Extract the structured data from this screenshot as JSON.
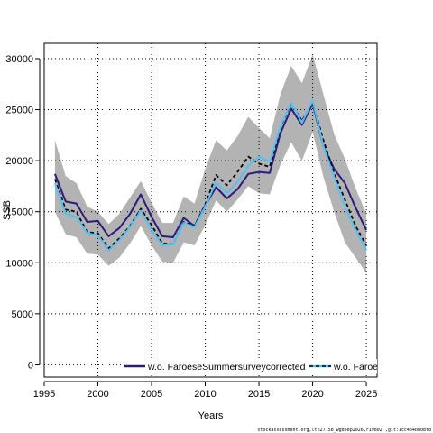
{
  "chart_data": {
    "type": "line",
    "xlabel": "Years",
    "ylabel": "SSB",
    "xlim": [
      1995,
      2026
    ],
    "ylim": [
      -1200,
      31500
    ],
    "x_ticks": [
      1995,
      2000,
      2005,
      2010,
      2015,
      2020,
      2025
    ],
    "y_ticks": [
      0,
      5000,
      10000,
      15000,
      20000,
      25000,
      30000
    ],
    "grid": "dotted",
    "years": [
      1996,
      1997,
      1998,
      1999,
      2000,
      2001,
      2002,
      2003,
      2004,
      2005,
      2006,
      2007,
      2008,
      2009,
      2010,
      2011,
      2012,
      2013,
      2014,
      2015,
      2016,
      2017,
      2018,
      2019,
      2020,
      2021,
      2022,
      2023,
      2024,
      2025
    ],
    "band": {
      "lower": [
        15000,
        12800,
        12500,
        10900,
        10800,
        9700,
        10500,
        11900,
        13600,
        11700,
        10100,
        10000,
        12000,
        11700,
        13700,
        16100,
        15000,
        16200,
        17500,
        16800,
        16700,
        19600,
        21800,
        20000,
        22800,
        18400,
        15000,
        12000,
        10500,
        9000
      ],
      "upper": [
        22000,
        18500,
        17800,
        15500,
        15000,
        13800,
        14800,
        16400,
        18000,
        15900,
        13900,
        13900,
        16500,
        15800,
        19200,
        22000,
        21000,
        22400,
        24300,
        23200,
        22200,
        26500,
        29300,
        27600,
        30400,
        26500,
        22600,
        20200,
        17300,
        14800
      ]
    },
    "series": [
      {
        "name": "w.o. FaroeseSummersurveycorrected",
        "color": "#2e1a7a",
        "style": "solid",
        "values": [
          18700,
          16000,
          15800,
          14000,
          14100,
          12600,
          13400,
          14800,
          16700,
          14500,
          12600,
          12500,
          14400,
          13600,
          15600,
          17400,
          16300,
          17200,
          18700,
          18900,
          18800,
          22700,
          25100,
          23500,
          25600,
          21400,
          19200,
          17800,
          15400,
          13200
        ]
      },
      {
        "name": "",
        "color": "#000000",
        "style": "dashed",
        "values": [
          18200,
          15200,
          15000,
          13000,
          12900,
          11400,
          12400,
          13600,
          15300,
          13700,
          11900,
          11800,
          14000,
          13600,
          15700,
          18600,
          17600,
          18900,
          20400,
          19700,
          19400,
          23300,
          25600,
          23900,
          25700,
          22000,
          18800,
          16200,
          13600,
          11700
        ]
      },
      {
        "name": "w.o. Faroe",
        "color": "#4fc3f7",
        "style": "solid",
        "values": [
          17800,
          14800,
          14500,
          12900,
          12700,
          11200,
          12200,
          13500,
          15100,
          13200,
          11700,
          11800,
          13900,
          13500,
          15500,
          17900,
          16800,
          17900,
          19500,
          20400,
          19900,
          23400,
          25700,
          23700,
          25900,
          21400,
          18400,
          15500,
          13200,
          11200
        ]
      }
    ],
    "legend_position": "bottom",
    "colors": {
      "band": "#b3b3b3",
      "grid": "#000000",
      "axis": "#000000"
    }
  },
  "footer_text": "stockassessment.org,ltn27.5b_wgdeep2026,r19802 ,git:1cc464b808fd"
}
